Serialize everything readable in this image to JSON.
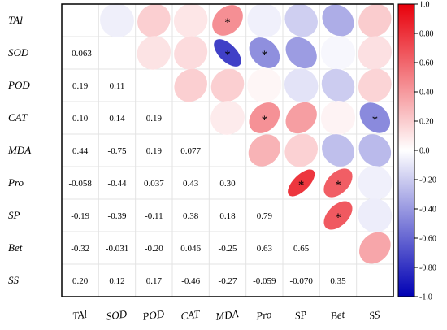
{
  "chart_data": {
    "type": "heatmap",
    "subtype": "correlation-matrix",
    "variables": [
      "TAl",
      "SOD",
      "POD",
      "CAT",
      "MDA",
      "Pro",
      "SP",
      "Bet",
      "SS"
    ],
    "lower_triangle_display": "coefficient text",
    "upper_triangle_display": "ellipse (color = r, elongation = |r|)",
    "significance_marker": "*",
    "correlations": [
      {
        "row": "SOD",
        "col": "TAl",
        "r": -0.063
      },
      {
        "row": "POD",
        "col": "TAl",
        "r": 0.19
      },
      {
        "row": "POD",
        "col": "SOD",
        "r": 0.11
      },
      {
        "row": "CAT",
        "col": "TAl",
        "r": 0.1
      },
      {
        "row": "CAT",
        "col": "SOD",
        "r": 0.14
      },
      {
        "row": "CAT",
        "col": "POD",
        "r": 0.19
      },
      {
        "row": "MDA",
        "col": "TAl",
        "r": 0.44
      },
      {
        "row": "MDA",
        "col": "SOD",
        "r": -0.75
      },
      {
        "row": "MDA",
        "col": "POD",
        "r": 0.19
      },
      {
        "row": "MDA",
        "col": "CAT",
        "r": 0.077
      },
      {
        "row": "Pro",
        "col": "TAl",
        "r": -0.058
      },
      {
        "row": "Pro",
        "col": "SOD",
        "r": -0.44
      },
      {
        "row": "Pro",
        "col": "POD",
        "r": 0.037
      },
      {
        "row": "Pro",
        "col": "CAT",
        "r": 0.43
      },
      {
        "row": "Pro",
        "col": "MDA",
        "r": 0.3
      },
      {
        "row": "SP",
        "col": "TAl",
        "r": -0.19
      },
      {
        "row": "SP",
        "col": "SOD",
        "r": -0.39
      },
      {
        "row": "SP",
        "col": "POD",
        "r": -0.11
      },
      {
        "row": "SP",
        "col": "CAT",
        "r": 0.38
      },
      {
        "row": "SP",
        "col": "MDA",
        "r": 0.18
      },
      {
        "row": "SP",
        "col": "Pro",
        "r": 0.79
      },
      {
        "row": "Bet",
        "col": "TAl",
        "r": -0.32
      },
      {
        "row": "Bet",
        "col": "SOD",
        "r": -0.031
      },
      {
        "row": "Bet",
        "col": "POD",
        "r": -0.2
      },
      {
        "row": "Bet",
        "col": "CAT",
        "r": 0.046
      },
      {
        "row": "Bet",
        "col": "MDA",
        "r": -0.25
      },
      {
        "row": "Bet",
        "col": "Pro",
        "r": 0.63
      },
      {
        "row": "Bet",
        "col": "SP",
        "r": 0.65
      },
      {
        "row": "SS",
        "col": "TAl",
        "r": 0.2
      },
      {
        "row": "SS",
        "col": "SOD",
        "r": 0.12
      },
      {
        "row": "SS",
        "col": "POD",
        "r": 0.17
      },
      {
        "row": "SS",
        "col": "CAT",
        "r": -0.46
      },
      {
        "row": "SS",
        "col": "MDA",
        "r": -0.27
      },
      {
        "row": "SS",
        "col": "Pro",
        "r": -0.059
      },
      {
        "row": "SS",
        "col": "SP",
        "r": -0.07
      },
      {
        "row": "SS",
        "col": "Bet",
        "r": 0.35
      }
    ],
    "labels": {
      "SOD|TAl": "-0.063",
      "POD|TAl": "0.19",
      "POD|SOD": "0.11",
      "CAT|TAl": "0.10",
      "CAT|SOD": "0.14",
      "CAT|POD": "0.19",
      "MDA|TAl": "0.44",
      "MDA|SOD": "-0.75",
      "MDA|POD": "0.19",
      "MDA|CAT": "0.077",
      "Pro|TAl": "-0.058",
      "Pro|SOD": "-0.44",
      "Pro|POD": "0.037",
      "Pro|CAT": "0.43",
      "Pro|MDA": "0.30",
      "SP|TAl": "-0.19",
      "SP|SOD": "-0.39",
      "SP|POD": "-0.11",
      "SP|CAT": "0.38",
      "SP|MDA": "0.18",
      "SP|Pro": "0.79",
      "Bet|TAl": "-0.32",
      "Bet|SOD": "-0.031",
      "Bet|POD": "-0.20",
      "Bet|CAT": "0.046",
      "Bet|MDA": "-0.25",
      "Bet|Pro": "0.63",
      "Bet|SP": "0.65",
      "SS|TAl": "0.20",
      "SS|SOD": "0.12",
      "SS|POD": "0.17",
      "SS|CAT": "-0.46",
      "SS|MDA": "-0.27",
      "SS|Pro": "-0.059",
      "SS|SP": "-0.070",
      "SS|Bet": "0.35"
    },
    "significant_pairs": [
      [
        "TAl",
        "MDA"
      ],
      [
        "SOD",
        "MDA"
      ],
      [
        "SOD",
        "Pro"
      ],
      [
        "CAT",
        "Pro"
      ],
      [
        "CAT",
        "SS"
      ],
      [
        "Pro",
        "SP"
      ],
      [
        "Pro",
        "Bet"
      ],
      [
        "SP",
        "Bet"
      ]
    ],
    "colorbar": {
      "range": [
        -1.0,
        1.0
      ],
      "ticks": [
        1.0,
        0.8,
        0.6,
        0.4,
        0.2,
        0.0,
        -0.2,
        -0.4,
        -0.6,
        -0.8,
        -1.0
      ],
      "tick_labels": [
        "1.0",
        "0.80",
        "0.60",
        "0.40",
        "0.20",
        "0.0",
        "-0.20",
        "-0.40",
        "-0.60",
        "-0.80",
        "-1.0"
      ],
      "top_color": "#e8000b",
      "mid_color": "#ffffff",
      "bottom_color": "#0000b4",
      "orientation": "positive on top"
    },
    "grid": true,
    "legend": "colorbar right"
  }
}
